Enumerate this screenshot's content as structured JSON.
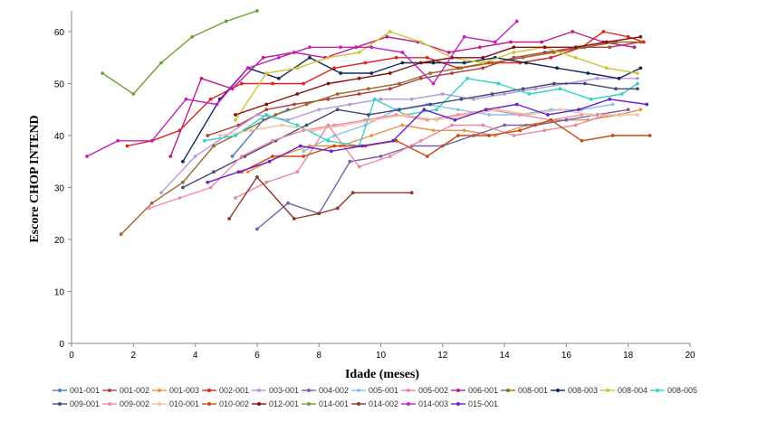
{
  "chart_data": {
    "type": "line",
    "title": "",
    "xlabel": "Idade (meses)",
    "ylabel": "Escore CHOP INTEND",
    "xlim": [
      0,
      20
    ],
    "ylim": [
      0,
      64
    ],
    "xticks": [
      0,
      2,
      4,
      6,
      8,
      10,
      12,
      14,
      16,
      18,
      20
    ],
    "yticks": [
      0,
      10,
      20,
      30,
      40,
      50,
      60
    ],
    "grid": false,
    "legend_position": "bottom",
    "series": [
      {
        "name": "001-001",
        "color": "#4a7fc6",
        "points": [
          [
            5.2,
            36
          ],
          [
            6.2,
            43
          ],
          [
            7,
            45
          ]
        ]
      },
      {
        "name": "001-002",
        "color": "#b0413e",
        "points": [
          [
            4.4,
            40
          ],
          [
            5.4,
            42
          ],
          [
            6.3,
            45
          ],
          [
            7.2,
            46
          ],
          [
            8.3,
            47
          ],
          [
            9.3,
            48
          ],
          [
            10.3,
            49
          ],
          [
            11.3,
            51
          ],
          [
            12.3,
            52
          ],
          [
            13.3,
            53
          ],
          [
            14.3,
            55
          ],
          [
            15.3,
            56
          ],
          [
            16.4,
            57
          ],
          [
            17.4,
            57
          ],
          [
            18.4,
            58
          ]
        ]
      },
      {
        "name": "001-003",
        "color": "#e8914a",
        "points": [
          [
            5.7,
            33
          ],
          [
            6.7,
            36
          ],
          [
            7.7,
            38
          ],
          [
            8.7,
            38
          ],
          [
            9.7,
            40
          ],
          [
            10.7,
            42
          ],
          [
            11.7,
            41
          ],
          [
            12.7,
            41
          ],
          [
            13.7,
            40
          ],
          [
            14.7,
            42
          ],
          [
            15.7,
            43
          ],
          [
            16.7,
            43
          ],
          [
            17.7,
            44
          ],
          [
            18.4,
            45
          ]
        ]
      },
      {
        "name": "002-001",
        "color": "#e02222",
        "points": [
          [
            1.8,
            38
          ],
          [
            2.6,
            39
          ],
          [
            3.5,
            41
          ],
          [
            4.5,
            47
          ],
          [
            5.5,
            50
          ],
          [
            6.5,
            50
          ],
          [
            7.5,
            50
          ],
          [
            8.5,
            53
          ],
          [
            9.5,
            54
          ],
          [
            10.5,
            55
          ],
          [
            11.5,
            55
          ],
          [
            12.5,
            53
          ],
          [
            13.5,
            54
          ],
          [
            14.5,
            54
          ],
          [
            15.5,
            55
          ],
          [
            16.5,
            57
          ],
          [
            17.2,
            60
          ],
          [
            18,
            59
          ],
          [
            18.5,
            58
          ]
        ]
      },
      {
        "name": "003-001",
        "color": "#b49ae0",
        "points": [
          [
            2.9,
            29
          ],
          [
            4,
            36
          ],
          [
            5,
            40
          ],
          [
            6,
            44
          ],
          [
            7,
            43
          ],
          [
            8,
            45
          ],
          [
            9,
            46
          ],
          [
            10,
            47
          ],
          [
            11,
            47
          ],
          [
            12,
            48
          ],
          [
            13,
            47
          ],
          [
            14,
            48
          ],
          [
            15,
            49
          ],
          [
            16,
            50
          ],
          [
            17,
            51
          ],
          [
            18.3,
            51
          ]
        ]
      },
      {
        "name": "004-002",
        "color": "#7560a8",
        "points": [
          [
            6,
            22
          ],
          [
            7,
            27
          ],
          [
            8,
            25
          ],
          [
            9,
            35
          ],
          [
            10,
            36
          ],
          [
            11,
            38
          ],
          [
            12,
            38
          ],
          [
            13,
            40
          ],
          [
            14,
            42
          ],
          [
            15,
            42
          ],
          [
            16,
            43
          ],
          [
            17,
            44
          ],
          [
            18,
            45
          ]
        ]
      },
      {
        "name": "005-001",
        "color": "#88c0ea",
        "points": [
          [
            7.5,
            37
          ],
          [
            8.5,
            40
          ],
          [
            9.5,
            42
          ],
          [
            10.5,
            45
          ],
          [
            11.5,
            46
          ],
          [
            12.5,
            45
          ],
          [
            13.5,
            44
          ],
          [
            14.5,
            44
          ],
          [
            15.5,
            45
          ],
          [
            16.5,
            45
          ],
          [
            17.5,
            46
          ]
        ]
      },
      {
        "name": "005-002",
        "color": "#e88aa0",
        "points": [
          [
            5.3,
            28
          ],
          [
            6.3,
            31
          ],
          [
            7.3,
            33
          ],
          [
            8.3,
            42
          ],
          [
            9.3,
            34
          ],
          [
            10.3,
            36
          ],
          [
            11.3,
            39
          ],
          [
            12.3,
            42
          ],
          [
            13.3,
            42
          ],
          [
            14.3,
            40
          ],
          [
            15.3,
            41
          ],
          [
            16.3,
            42
          ],
          [
            17.3,
            44
          ]
        ]
      },
      {
        "name": "006-001",
        "color": "#c21a8c",
        "points": [
          [
            3.2,
            36
          ],
          [
            4.2,
            51
          ],
          [
            5.2,
            49
          ],
          [
            6.2,
            55
          ],
          [
            7.2,
            56
          ],
          [
            8.2,
            55
          ],
          [
            9.2,
            57
          ],
          [
            10.2,
            59
          ],
          [
            11.2,
            58
          ],
          [
            12.2,
            56
          ],
          [
            13.2,
            57
          ],
          [
            14.2,
            58
          ],
          [
            15.2,
            58
          ],
          [
            16.2,
            60
          ],
          [
            17.2,
            58
          ],
          [
            18.2,
            57
          ]
        ]
      },
      {
        "name": "008-001",
        "color": "#9b6a2a",
        "points": [
          [
            1.6,
            21
          ],
          [
            2.6,
            27
          ],
          [
            3.6,
            31
          ],
          [
            4.6,
            38
          ],
          [
            5.6,
            41
          ],
          [
            6.6,
            44
          ],
          [
            7.6,
            46
          ],
          [
            8.6,
            48
          ],
          [
            9.6,
            49
          ],
          [
            10.6,
            50
          ],
          [
            11.6,
            52
          ],
          [
            12.6,
            53
          ],
          [
            13.6,
            54
          ],
          [
            14.6,
            55
          ],
          [
            15.6,
            56
          ],
          [
            16.6,
            57
          ],
          [
            17.6,
            58
          ],
          [
            18.4,
            58
          ]
        ]
      },
      {
        "name": "008-003",
        "color": "#0f2a55",
        "points": [
          [
            3.6,
            35
          ],
          [
            4.8,
            47
          ],
          [
            5.7,
            53
          ],
          [
            6.7,
            51
          ],
          [
            7.7,
            55
          ],
          [
            8.7,
            52
          ],
          [
            9.7,
            52
          ],
          [
            10.7,
            54
          ],
          [
            11.7,
            54
          ],
          [
            12.7,
            54
          ],
          [
            13.7,
            55
          ],
          [
            14.7,
            54
          ],
          [
            15.7,
            53
          ],
          [
            16.7,
            52
          ],
          [
            17.7,
            51
          ],
          [
            18.4,
            53
          ]
        ]
      },
      {
        "name": "008-004",
        "color": "#cfc436",
        "points": [
          [
            5.3,
            43
          ],
          [
            6.3,
            52
          ],
          [
            7.3,
            53
          ],
          [
            8.3,
            55
          ],
          [
            9.3,
            56
          ],
          [
            10.3,
            60
          ],
          [
            11.3,
            58
          ],
          [
            12.3,
            55
          ],
          [
            13.3,
            54
          ],
          [
            14.3,
            56
          ],
          [
            15.3,
            57
          ],
          [
            16.3,
            55
          ],
          [
            17.3,
            53
          ],
          [
            18.3,
            52
          ]
        ]
      },
      {
        "name": "008-005",
        "color": "#33d3c3",
        "points": [
          [
            4.3,
            39
          ],
          [
            5.3,
            40
          ],
          [
            6.3,
            44
          ],
          [
            7.3,
            42
          ],
          [
            8.3,
            39
          ],
          [
            9.3,
            38
          ],
          [
            9.8,
            47
          ],
          [
            10.8,
            44
          ],
          [
            11.8,
            45
          ],
          [
            12.8,
            51
          ],
          [
            13.8,
            50
          ],
          [
            14.8,
            48
          ],
          [
            15.8,
            49
          ],
          [
            16.8,
            47
          ],
          [
            17.8,
            48
          ],
          [
            18.3,
            50
          ]
        ]
      },
      {
        "name": "009-001",
        "color": "#4a4a7a",
        "points": [
          [
            3.6,
            30
          ],
          [
            4.6,
            33
          ],
          [
            5.6,
            36
          ],
          [
            6.6,
            39
          ],
          [
            7.6,
            42
          ],
          [
            8.6,
            45
          ],
          [
            9.6,
            44
          ],
          [
            10.6,
            45
          ],
          [
            11.6,
            46
          ],
          [
            12.6,
            47
          ],
          [
            13.6,
            48
          ],
          [
            14.6,
            49
          ],
          [
            15.6,
            50
          ],
          [
            16.6,
            50
          ],
          [
            17.6,
            49
          ],
          [
            18.3,
            49
          ]
        ]
      },
      {
        "name": "009-002",
        "color": "#f08aa8",
        "points": [
          [
            2.5,
            26
          ],
          [
            3.5,
            28
          ],
          [
            4.5,
            30
          ],
          [
            5.5,
            36
          ],
          [
            6.5,
            39
          ],
          [
            7.5,
            41
          ],
          [
            8.5,
            42
          ],
          [
            9.5,
            43
          ],
          [
            10.5,
            44
          ],
          [
            11.5,
            43
          ],
          [
            12.5,
            44
          ],
          [
            13.5,
            45
          ],
          [
            14.5,
            44
          ],
          [
            15.5,
            43
          ],
          [
            16.5,
            44
          ]
        ]
      },
      {
        "name": "010-001",
        "color": "#f0c3a0",
        "points": [
          [
            4.8,
            40
          ],
          [
            5.8,
            41
          ],
          [
            6.8,
            42
          ],
          [
            7.8,
            41
          ],
          [
            8.8,
            42
          ],
          [
            9.8,
            43
          ],
          [
            10.8,
            44
          ],
          [
            11.8,
            43
          ],
          [
            12.8,
            44
          ],
          [
            13.8,
            45
          ],
          [
            14.8,
            44
          ],
          [
            15.8,
            45
          ],
          [
            16.8,
            44
          ],
          [
            17.8,
            44
          ],
          [
            18.3,
            44
          ]
        ]
      },
      {
        "name": "010-002",
        "color": "#cc4a10",
        "points": [
          [
            5.5,
            33
          ],
          [
            6.5,
            36
          ],
          [
            7.5,
            36
          ],
          [
            8.5,
            38
          ],
          [
            9.5,
            38
          ],
          [
            10.5,
            39
          ],
          [
            11.5,
            36
          ],
          [
            12.5,
            40
          ],
          [
            13.5,
            40
          ],
          [
            14.5,
            41
          ],
          [
            15.5,
            43
          ],
          [
            16.5,
            39
          ],
          [
            17.5,
            40
          ],
          [
            18.7,
            40
          ]
        ]
      },
      {
        "name": "012-001",
        "color": "#8a0d10",
        "points": [
          [
            5.3,
            44
          ],
          [
            6.3,
            46
          ],
          [
            7.3,
            48
          ],
          [
            8.3,
            50
          ],
          [
            9.3,
            51
          ],
          [
            10.3,
            52
          ],
          [
            11.3,
            54
          ],
          [
            12.3,
            55
          ],
          [
            13.3,
            55
          ],
          [
            14.3,
            57
          ],
          [
            15.3,
            57
          ],
          [
            16.3,
            57
          ],
          [
            17.3,
            58
          ],
          [
            18.4,
            59
          ]
        ]
      },
      {
        "name": "014-001",
        "color": "#6fa12e",
        "points": [
          [
            1,
            52
          ],
          [
            2,
            48
          ],
          [
            2.9,
            54
          ],
          [
            3.9,
            59
          ],
          [
            5,
            62
          ],
          [
            6,
            64
          ]
        ]
      },
      {
        "name": "014-002",
        "color": "#8c3a2a",
        "points": [
          [
            5.1,
            24
          ],
          [
            6,
            32
          ],
          [
            7.2,
            24
          ],
          [
            8,
            25
          ],
          [
            8.6,
            26
          ],
          [
            9.1,
            29
          ],
          [
            11,
            29
          ]
        ]
      },
      {
        "name": "014-003",
        "color": "#c222c2",
        "points": [
          [
            0.5,
            36
          ],
          [
            1.5,
            39
          ],
          [
            2.6,
            39
          ],
          [
            3.7,
            47
          ],
          [
            4.7,
            46
          ],
          [
            5.7,
            53
          ],
          [
            6.7,
            55
          ],
          [
            7.7,
            57
          ],
          [
            8.7,
            57
          ],
          [
            9.7,
            57
          ],
          [
            10.7,
            56
          ],
          [
            11.7,
            50
          ],
          [
            12.7,
            59
          ],
          [
            13.7,
            58
          ],
          [
            14.4,
            62
          ]
        ]
      },
      {
        "name": "015-001",
        "color": "#6a22cc",
        "points": [
          [
            4.4,
            31
          ],
          [
            5.4,
            33
          ],
          [
            6.4,
            35
          ],
          [
            7.4,
            38
          ],
          [
            8.4,
            37
          ],
          [
            9.4,
            38
          ],
          [
            10.4,
            39
          ],
          [
            11.4,
            45
          ],
          [
            12.4,
            43
          ],
          [
            13.4,
            45
          ],
          [
            14.4,
            46
          ],
          [
            15.4,
            44
          ],
          [
            16.4,
            45
          ],
          [
            17.4,
            47
          ],
          [
            18.6,
            46
          ]
        ]
      }
    ]
  }
}
